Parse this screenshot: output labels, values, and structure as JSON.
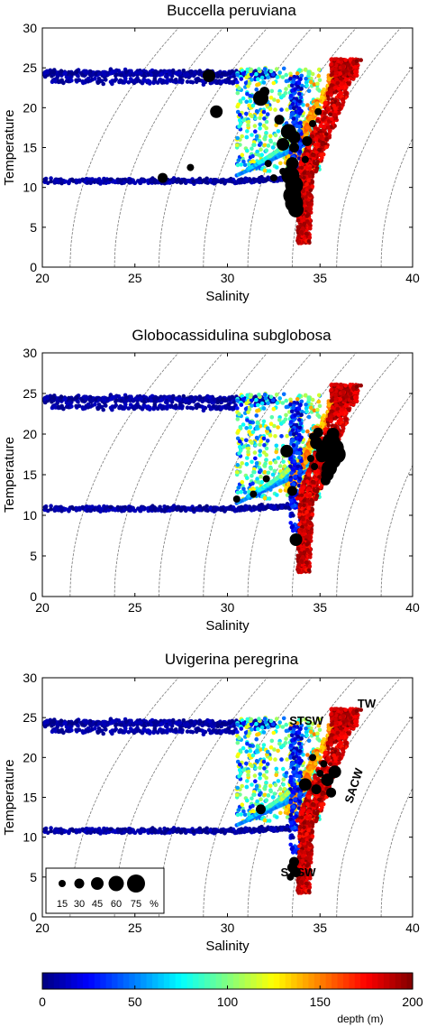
{
  "chart_data": [
    {
      "type": "scatter",
      "title": "Buccella peruviana",
      "xlabel": "Salinity",
      "ylabel": "Temperature",
      "xlim": [
        20,
        40
      ],
      "ylim": [
        0,
        30
      ],
      "xticks": [
        "20",
        "25",
        "30",
        "35",
        "40"
      ],
      "yticks": [
        "0",
        "5",
        "10",
        "15",
        "20",
        "25",
        "30"
      ],
      "series": [
        {
          "marker": "black-circle",
          "points": [
            {
              "x": 29.0,
              "y": 24.0,
              "pct": 45
            },
            {
              "x": 29.4,
              "y": 19.5,
              "pct": 45
            },
            {
              "x": 26.5,
              "y": 11.2,
              "pct": 30
            },
            {
              "x": 28.0,
              "y": 12.5,
              "pct": 15
            },
            {
              "x": 31.8,
              "y": 21.2,
              "pct": 60
            },
            {
              "x": 32.0,
              "y": 22.0,
              "pct": 30
            },
            {
              "x": 32.8,
              "y": 18.5,
              "pct": 30
            },
            {
              "x": 33.3,
              "y": 17.0,
              "pct": 60
            },
            {
              "x": 33.6,
              "y": 16.3,
              "pct": 45
            },
            {
              "x": 33.0,
              "y": 15.4,
              "pct": 45
            },
            {
              "x": 33.6,
              "y": 15.0,
              "pct": 30
            },
            {
              "x": 33.5,
              "y": 13.0,
              "pct": 45
            },
            {
              "x": 33.4,
              "y": 11.5,
              "pct": 75
            },
            {
              "x": 33.6,
              "y": 10.3,
              "pct": 75
            },
            {
              "x": 33.5,
              "y": 9.0,
              "pct": 75
            },
            {
              "x": 33.6,
              "y": 8.0,
              "pct": 75
            },
            {
              "x": 33.7,
              "y": 7.2,
              "pct": 60
            },
            {
              "x": 34.3,
              "y": 15.8,
              "pct": 30
            },
            {
              "x": 34.6,
              "y": 18.0,
              "pct": 15
            },
            {
              "x": 34.9,
              "y": 19.5,
              "pct": 15
            },
            {
              "x": 34.2,
              "y": 13.5,
              "pct": 15
            },
            {
              "x": 32.2,
              "y": 13.0,
              "pct": 15
            },
            {
              "x": 32.5,
              "y": 11.2,
              "pct": 15
            },
            {
              "x": 33.0,
              "y": 12.0,
              "pct": 15
            }
          ]
        }
      ]
    },
    {
      "type": "scatter",
      "title": "Globocassidulina subglobosa",
      "xlabel": "Salinity",
      "ylabel": "Temperature",
      "xlim": [
        20,
        40
      ],
      "ylim": [
        0,
        30
      ],
      "xticks": [
        "20",
        "25",
        "30",
        "35",
        "40"
      ],
      "yticks": [
        "0",
        "5",
        "10",
        "15",
        "20",
        "25",
        "30"
      ],
      "series": [
        {
          "marker": "black-circle",
          "points": [
            {
              "x": 33.7,
              "y": 7.0,
              "pct": 45
            },
            {
              "x": 33.5,
              "y": 13.0,
              "pct": 30
            },
            {
              "x": 33.2,
              "y": 17.9,
              "pct": 45
            },
            {
              "x": 32.1,
              "y": 14.5,
              "pct": 15
            },
            {
              "x": 31.4,
              "y": 12.6,
              "pct": 15
            },
            {
              "x": 30.5,
              "y": 12.0,
              "pct": 15
            },
            {
              "x": 34.8,
              "y": 18.9,
              "pct": 45
            },
            {
              "x": 35.2,
              "y": 18.2,
              "pct": 60
            },
            {
              "x": 35.6,
              "y": 19.0,
              "pct": 75
            },
            {
              "x": 35.8,
              "y": 18.3,
              "pct": 75
            },
            {
              "x": 35.9,
              "y": 17.5,
              "pct": 75
            },
            {
              "x": 35.7,
              "y": 16.7,
              "pct": 60
            },
            {
              "x": 35.5,
              "y": 15.8,
              "pct": 60
            },
            {
              "x": 35.4,
              "y": 15.0,
              "pct": 45
            },
            {
              "x": 35.3,
              "y": 14.3,
              "pct": 30
            },
            {
              "x": 35.1,
              "y": 17.3,
              "pct": 45
            },
            {
              "x": 35.7,
              "y": 20.0,
              "pct": 45
            },
            {
              "x": 34.5,
              "y": 17.0,
              "pct": 15
            },
            {
              "x": 34.6,
              "y": 19.7,
              "pct": 15
            },
            {
              "x": 34.7,
              "y": 16.0,
              "pct": 15
            },
            {
              "x": 34.9,
              "y": 20.2,
              "pct": 30
            }
          ]
        }
      ]
    },
    {
      "type": "scatter",
      "title": "Uvigerina peregrina",
      "xlabel": "Salinity",
      "ylabel": "Temperature",
      "xlim": [
        20,
        40
      ],
      "ylim": [
        0,
        30
      ],
      "xticks": [
        "20",
        "25",
        "30",
        "35",
        "40"
      ],
      "yticks": [
        "0",
        "5",
        "10",
        "15",
        "20",
        "25",
        "30"
      ],
      "water_masses": [
        "TW",
        "STSW",
        "SACW",
        "SASW"
      ],
      "legend": {
        "position": "bottom-left",
        "sizes": [
          "15",
          "30",
          "45",
          "60",
          "75"
        ],
        "unit": "%"
      },
      "series": [
        {
          "marker": "black-circle",
          "points": [
            {
              "x": 33.6,
              "y": 6.9,
              "pct": 30
            },
            {
              "x": 33.5,
              "y": 6.2,
              "pct": 30
            },
            {
              "x": 33.7,
              "y": 5.6,
              "pct": 30
            },
            {
              "x": 33.4,
              "y": 5.0,
              "pct": 15
            },
            {
              "x": 31.8,
              "y": 13.5,
              "pct": 30
            },
            {
              "x": 34.2,
              "y": 16.6,
              "pct": 45
            },
            {
              "x": 34.8,
              "y": 16.0,
              "pct": 30
            },
            {
              "x": 35.4,
              "y": 17.2,
              "pct": 45
            },
            {
              "x": 35.8,
              "y": 18.2,
              "pct": 45
            },
            {
              "x": 35.6,
              "y": 15.6,
              "pct": 30
            },
            {
              "x": 35.0,
              "y": 18.0,
              "pct": 15
            },
            {
              "x": 35.2,
              "y": 19.2,
              "pct": 15
            },
            {
              "x": 34.6,
              "y": 20.0,
              "pct": 15
            }
          ]
        }
      ]
    }
  ],
  "colorbar": {
    "label": "depth (m)",
    "ticks": [
      "0",
      "50",
      "100",
      "150",
      "200"
    ],
    "range": [
      0,
      200
    ],
    "colormap": "jet"
  }
}
